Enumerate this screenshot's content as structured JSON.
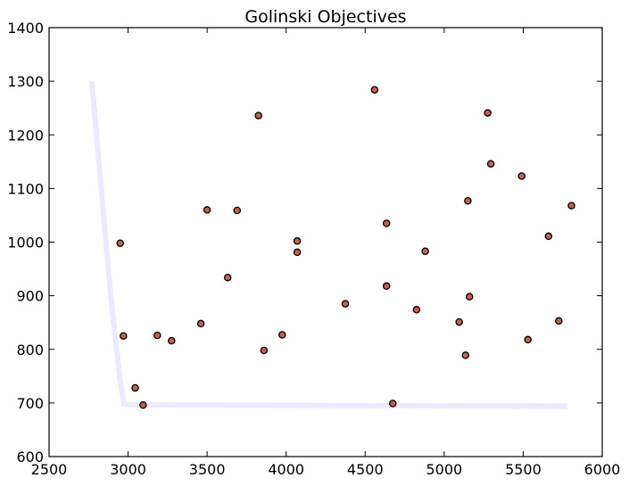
{
  "chart_data": {
    "type": "scatter",
    "title": "Golinski Objectives",
    "xlabel": "",
    "ylabel": "",
    "xlim": [
      2500,
      6000
    ],
    "ylim": [
      600,
      1400
    ],
    "xticks": [
      2500,
      3000,
      3500,
      4000,
      4500,
      5000,
      5500,
      6000
    ],
    "yticks": [
      600,
      700,
      800,
      900,
      1000,
      1100,
      1200,
      1300,
      1400
    ],
    "grid": false,
    "legend": "none",
    "colors": {
      "point_fill": "#c4614f",
      "point_edge": "#000000",
      "frontier": "#dcdcf7"
    },
    "points": [
      {
        "x": 2950,
        "y": 998
      },
      {
        "x": 2970,
        "y": 825
      },
      {
        "x": 3045,
        "y": 728
      },
      {
        "x": 3095,
        "y": 696
      },
      {
        "x": 3185,
        "y": 826
      },
      {
        "x": 3275,
        "y": 816
      },
      {
        "x": 3460,
        "y": 848
      },
      {
        "x": 3500,
        "y": 1060
      },
      {
        "x": 3630,
        "y": 934
      },
      {
        "x": 3690,
        "y": 1059
      },
      {
        "x": 3825,
        "y": 1236
      },
      {
        "x": 3860,
        "y": 798
      },
      {
        "x": 3975,
        "y": 827
      },
      {
        "x": 4070,
        "y": 1002
      },
      {
        "x": 4070,
        "y": 981
      },
      {
        "x": 4375,
        "y": 885
      },
      {
        "x": 4560,
        "y": 1284
      },
      {
        "x": 4635,
        "y": 1035
      },
      {
        "x": 4635,
        "y": 918
      },
      {
        "x": 4675,
        "y": 699
      },
      {
        "x": 4825,
        "y": 874
      },
      {
        "x": 4880,
        "y": 983
      },
      {
        "x": 5095,
        "y": 851
      },
      {
        "x": 5135,
        "y": 789
      },
      {
        "x": 5150,
        "y": 1077
      },
      {
        "x": 5160,
        "y": 898
      },
      {
        "x": 5275,
        "y": 1241
      },
      {
        "x": 5295,
        "y": 1146
      },
      {
        "x": 5490,
        "y": 1123
      },
      {
        "x": 5530,
        "y": 818
      },
      {
        "x": 5660,
        "y": 1011
      },
      {
        "x": 5725,
        "y": 853
      },
      {
        "x": 5805,
        "y": 1068
      }
    ],
    "frontier": [
      {
        "x": 2770,
        "y": 1300
      },
      {
        "x": 2830,
        "y": 1100
      },
      {
        "x": 2890,
        "y": 900
      },
      {
        "x": 2950,
        "y": 740
      },
      {
        "x": 2975,
        "y": 697
      },
      {
        "x": 3500,
        "y": 696
      },
      {
        "x": 4500,
        "y": 695
      },
      {
        "x": 5780,
        "y": 694
      }
    ]
  }
}
